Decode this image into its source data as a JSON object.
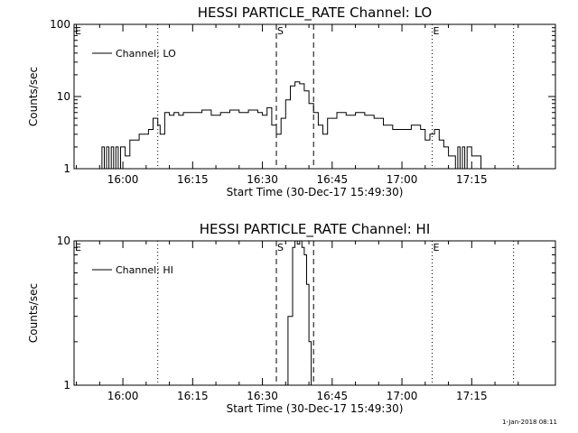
{
  "chart_data": [
    {
      "type": "line",
      "title": "HESSI PARTICLE_RATE Channel: LO",
      "xlabel": "Start Time (30-Dec-17 15:49:30)",
      "ylabel": "Counts/sec",
      "yscale": "log",
      "ylim": [
        1,
        100
      ],
      "xlim": [
        "15:49:30",
        "17:33:00"
      ],
      "x_ticks": [
        "16:00",
        "16:15",
        "16:30",
        "16:45",
        "17:00",
        "17:15"
      ],
      "y_ticks": [
        "1",
        "10",
        "100"
      ],
      "legend": "top-left",
      "series": [
        {
          "name": "Channel: LO",
          "x": [
            "15:55:00",
            "15:55:30",
            "15:56:00",
            "15:56:30",
            "15:57:00",
            "15:57:30",
            "15:58:00",
            "15:58:30",
            "15:59:00",
            "15:59:30",
            "16:00:30",
            "16:01:30",
            "16:02:30",
            "16:03:30",
            "16:04:30",
            "16:05:30",
            "16:06:30",
            "16:07:30",
            "16:08:00",
            "16:09:00",
            "16:10:00",
            "16:11:00",
            "16:12:00",
            "16:13:00",
            "16:15:00",
            "16:17:00",
            "16:19:00",
            "16:21:00",
            "16:23:00",
            "16:25:00",
            "16:27:00",
            "16:29:00",
            "16:30:00",
            "16:31:00",
            "16:32:00",
            "16:33:00",
            "16:34:00",
            "16:35:00",
            "16:36:00",
            "16:37:00",
            "16:38:00",
            "16:39:00",
            "16:40:00",
            "16:41:00",
            "16:42:00",
            "16:43:00",
            "16:44:00",
            "16:46:00",
            "16:48:00",
            "16:50:00",
            "16:52:00",
            "16:54:00",
            "16:56:00",
            "16:58:00",
            "17:00:00",
            "17:02:00",
            "17:04:00",
            "17:05:00",
            "17:06:00",
            "17:07:00",
            "17:08:00",
            "17:09:00",
            "17:10:00",
            "17:11:00",
            "17:11:30",
            "17:12:00",
            "17:12:30",
            "17:13:00",
            "17:13:30",
            "17:14:00",
            "17:15:00",
            "17:16:00",
            "17:17:00",
            "17:18:00"
          ],
          "values": [
            1,
            2,
            1,
            2,
            1,
            2,
            1,
            2,
            1,
            2,
            1.5,
            2.5,
            2.5,
            3,
            3,
            3.5,
            5,
            4,
            3,
            6,
            5.5,
            6,
            5.5,
            6,
            6,
            6.5,
            5.5,
            6,
            6.5,
            6,
            6.5,
            6,
            5.5,
            7,
            4,
            3,
            5,
            9,
            14,
            16,
            15,
            12,
            8,
            6,
            4,
            3,
            5,
            6,
            5.5,
            6,
            5.5,
            5,
            4,
            3.5,
            3.5,
            4,
            3.5,
            2.5,
            3,
            3.5,
            2.5,
            2,
            1.5,
            1.5,
            1,
            2,
            1,
            2,
            1,
            2,
            1.5,
            1.5,
            1,
            1
          ]
        }
      ],
      "markers": [
        {
          "label": "E",
          "time": "15:49:30",
          "style": "dotted"
        },
        {
          "label": "",
          "time": "16:07:30",
          "style": "dotted"
        },
        {
          "label": "S",
          "time": "16:33:00",
          "style": "dashed"
        },
        {
          "label": "",
          "time": "16:41:00",
          "style": "dashed"
        },
        {
          "label": "E",
          "time": "17:06:30",
          "style": "dotted"
        },
        {
          "label": "",
          "time": "17:24:00",
          "style": "dotted"
        }
      ]
    },
    {
      "type": "line",
      "title": "HESSI PARTICLE_RATE Channel: HI",
      "xlabel": "Start Time (30-Dec-17 15:49:30)",
      "ylabel": "Counts/sec",
      "yscale": "log",
      "ylim": [
        1,
        10
      ],
      "xlim": [
        "15:49:30",
        "17:33:00"
      ],
      "x_ticks": [
        "16:00",
        "16:15",
        "16:30",
        "16:45",
        "17:00",
        "17:15"
      ],
      "y_ticks": [
        "1",
        "10"
      ],
      "legend": "top-left",
      "series": [
        {
          "name": "Channel: HI",
          "x": [
            "16:34:30",
            "16:35:30",
            "16:36:30",
            "16:37:00",
            "16:37:30",
            "16:38:00",
            "16:38:30",
            "16:39:00",
            "16:39:30",
            "16:40:00",
            "16:40:30"
          ],
          "values": [
            1,
            3,
            9,
            10,
            9.5,
            10,
            9,
            8,
            5,
            2,
            1
          ]
        }
      ],
      "markers": [
        {
          "label": "E",
          "time": "15:49:30",
          "style": "dotted"
        },
        {
          "label": "",
          "time": "16:07:30",
          "style": "dotted"
        },
        {
          "label": "S",
          "time": "16:33:00",
          "style": "dashed"
        },
        {
          "label": "",
          "time": "16:41:00",
          "style": "dashed"
        },
        {
          "label": "E",
          "time": "17:06:30",
          "style": "dotted"
        },
        {
          "label": "",
          "time": "17:24:00",
          "style": "dotted"
        }
      ]
    }
  ],
  "footer": {
    "timestamp": "1-Jan-2018 08:11"
  }
}
